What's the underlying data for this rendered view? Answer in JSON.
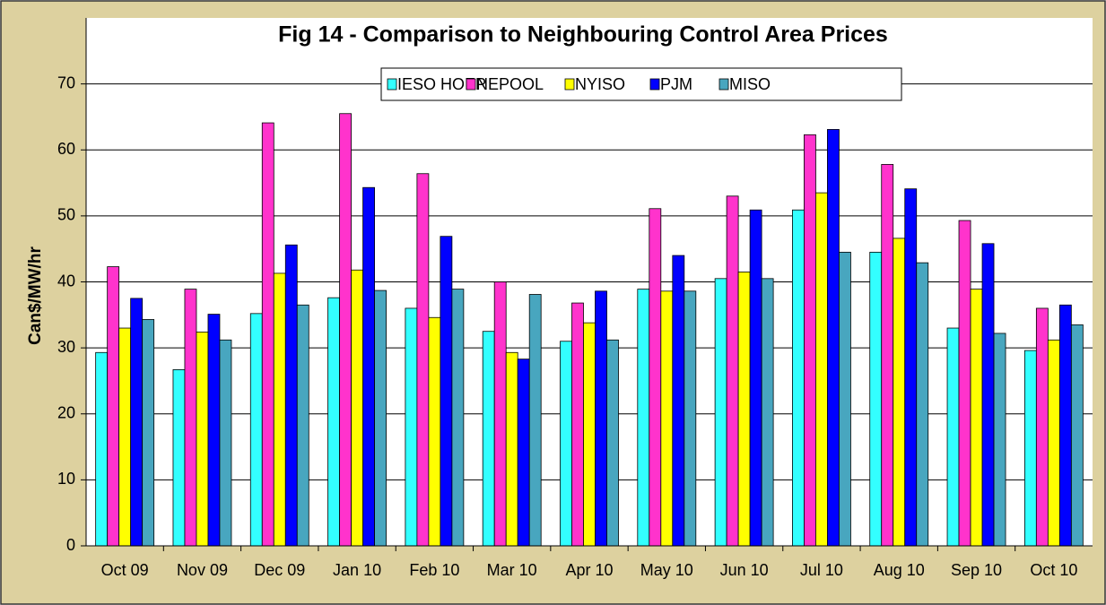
{
  "chart_data": {
    "type": "bar",
    "title": "Fig  14 - Comparison to Neighbouring Control Area Prices",
    "y_label": "Can$/MW/hr",
    "categories": [
      "Oct 09",
      "Nov 09",
      "Dec 09",
      "Jan 10",
      "Feb 10",
      "Mar 10",
      "Apr 10",
      "May 10",
      "Jun 10",
      "Jul 10",
      "Aug 10",
      "Sep 10",
      "Oct 10"
    ],
    "series": [
      {
        "name": "IESO HOEP",
        "color": "#33ffff",
        "values": [
          29.3,
          26.7,
          35.2,
          37.6,
          36.0,
          32.5,
          31.0,
          38.9,
          40.5,
          50.9,
          44.5,
          33.0,
          29.6
        ]
      },
      {
        "name": "NEPOOL",
        "color": "#ff33cc",
        "values": [
          42.3,
          38.9,
          64.1,
          65.5,
          56.4,
          40.0,
          36.8,
          51.1,
          53.0,
          62.3,
          57.8,
          49.3,
          36.0
        ]
      },
      {
        "name": "NYISO",
        "color": "#ffff00",
        "values": [
          33.0,
          32.4,
          41.3,
          41.8,
          34.6,
          29.3,
          33.8,
          38.6,
          41.5,
          53.5,
          46.6,
          38.9,
          31.2
        ]
      },
      {
        "name": "PJM",
        "color": "#0000ff",
        "values": [
          37.5,
          35.1,
          45.6,
          54.3,
          46.9,
          28.3,
          38.6,
          44.0,
          50.9,
          63.1,
          54.1,
          45.8,
          36.5
        ]
      },
      {
        "name": "MISO",
        "color": "#48a6bf",
        "values": [
          34.3,
          31.2,
          36.5,
          38.7,
          38.9,
          38.1,
          31.2,
          38.6,
          40.5,
          44.5,
          42.9,
          32.2,
          33.5
        ]
      }
    ],
    "ylim": [
      0,
      80
    ],
    "yticks": [
      0,
      10,
      20,
      30,
      40,
      50,
      60,
      70
    ],
    "grid": true,
    "legend": "top"
  }
}
